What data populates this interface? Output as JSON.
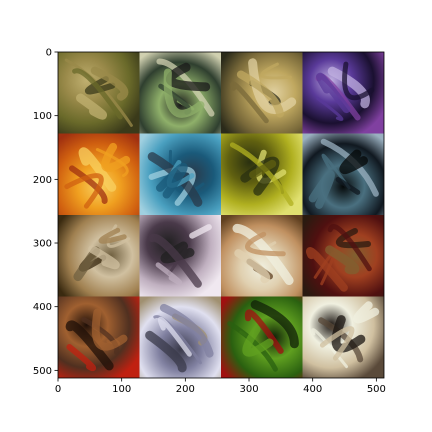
{
  "chart_data": {
    "type": "heatmap",
    "title": "",
    "xlabel": "",
    "ylabel": "",
    "xlim": [
      0,
      512
    ],
    "ylim": [
      512,
      0
    ],
    "x_ticks": [
      0,
      100,
      200,
      300,
      400,
      500
    ],
    "y_ticks": [
      0,
      100,
      200,
      300,
      400,
      500
    ],
    "grid": false,
    "grid_rows": 4,
    "grid_cols": 4,
    "tile_size": 128,
    "tiles": [
      {
        "row": 0,
        "col": 0,
        "colors": [
          "#6a6a2a",
          "#9a8a4a",
          "#3a3a1a",
          "#c0b070"
        ]
      },
      {
        "row": 0,
        "col": 1,
        "colors": [
          "#2f3f2f",
          "#8fb06a",
          "#d0d0b0",
          "#1a1a1a"
        ]
      },
      {
        "row": 0,
        "col": 2,
        "colors": [
          "#7a6a3a",
          "#c0a860",
          "#2a2a1a",
          "#e0d0a0"
        ]
      },
      {
        "row": 0,
        "col": 3,
        "colors": [
          "#1a1030",
          "#5a3a9a",
          "#8040a0",
          "#c0b0e0"
        ]
      },
      {
        "row": 1,
        "col": 0,
        "colors": [
          "#d06010",
          "#f0a020",
          "#a03010",
          "#f8d060"
        ]
      },
      {
        "row": 1,
        "col": 1,
        "colors": [
          "#4aa0c0",
          "#1a5a7a",
          "#a0d0e0",
          "#2a3a4a"
        ]
      },
      {
        "row": 1,
        "col": 2,
        "colors": [
          "#b0b020",
          "#606010",
          "#e0e070",
          "#2a3010"
        ]
      },
      {
        "row": 1,
        "col": 3,
        "colors": [
          "#101820",
          "#4a7080",
          "#9ab0c0",
          "#050808"
        ]
      },
      {
        "row": 2,
        "col": 0,
        "colors": [
          "#a08050",
          "#d0c0a0",
          "#3a2a10",
          "#706040"
        ]
      },
      {
        "row": 2,
        "col": 1,
        "colors": [
          "#c0b0c0",
          "#4a3a4a",
          "#f0e8f0",
          "#202020"
        ]
      },
      {
        "row": 2,
        "col": 2,
        "colors": [
          "#c09060",
          "#e0d0b0",
          "#604020",
          "#f0f0e0"
        ]
      },
      {
        "row": 2,
        "col": 3,
        "colors": [
          "#501010",
          "#a04020",
          "#2a1a10",
          "#806030"
        ]
      },
      {
        "row": 3,
        "col": 0,
        "colors": [
          "#503020",
          "#a06030",
          "#c02010",
          "#201008"
        ]
      },
      {
        "row": 3,
        "col": 1,
        "colors": [
          "#e0e0f0",
          "#8080a0",
          "#a09070",
          "#3a3a4a"
        ]
      },
      {
        "row": 3,
        "col": 2,
        "colors": [
          "#2a6010",
          "#60a020",
          "#a01010",
          "#102008"
        ]
      },
      {
        "row": 3,
        "col": 3,
        "colors": [
          "#d0c0a0",
          "#f0f0e0",
          "#5a4a3a",
          "#1a1410"
        ]
      }
    ]
  }
}
